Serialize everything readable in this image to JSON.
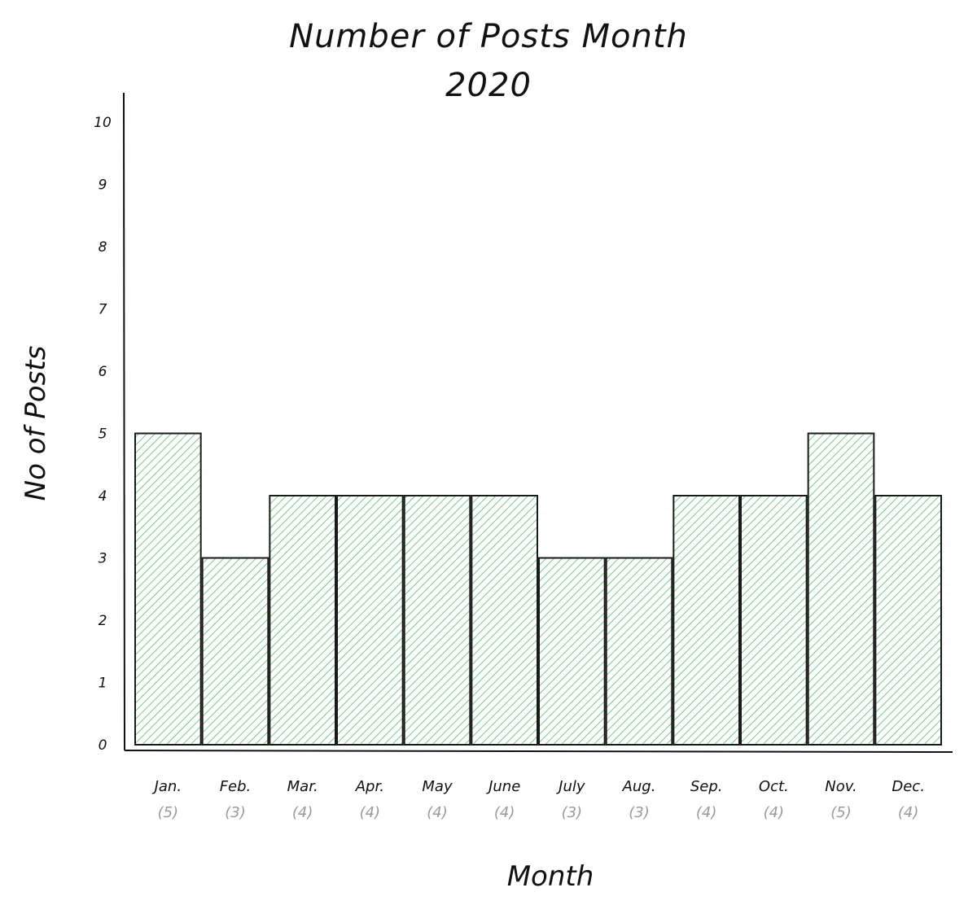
{
  "chart_data": {
    "type": "bar",
    "title": "Number of Posts Month",
    "subtitle": "2020",
    "xlabel": "Month",
    "ylabel": "No of Posts",
    "ylim": [
      0,
      10
    ],
    "yticks": [
      0,
      1,
      2,
      3,
      4,
      5,
      6,
      7,
      8,
      9,
      10
    ],
    "categories": [
      "Jan.",
      "Feb.",
      "Mar.",
      "Apr.",
      "May",
      "June",
      "July",
      "Aug.",
      "Sep.",
      "Oct.",
      "Nov.",
      "Dec."
    ],
    "values": [
      5,
      3,
      4,
      4,
      4,
      4,
      3,
      3,
      4,
      4,
      5,
      4
    ],
    "value_labels": [
      "(5)",
      "(3)",
      "(4)",
      "(4)",
      "(4)",
      "(4)",
      "(3)",
      "(3)",
      "(4)",
      "(4)",
      "(5)",
      "(4)"
    ],
    "grid": false,
    "colors": {
      "bar_hatch": "#4fbf62",
      "bar_outline": "#1a1a1a",
      "value_label": "#9a9a9a"
    }
  }
}
